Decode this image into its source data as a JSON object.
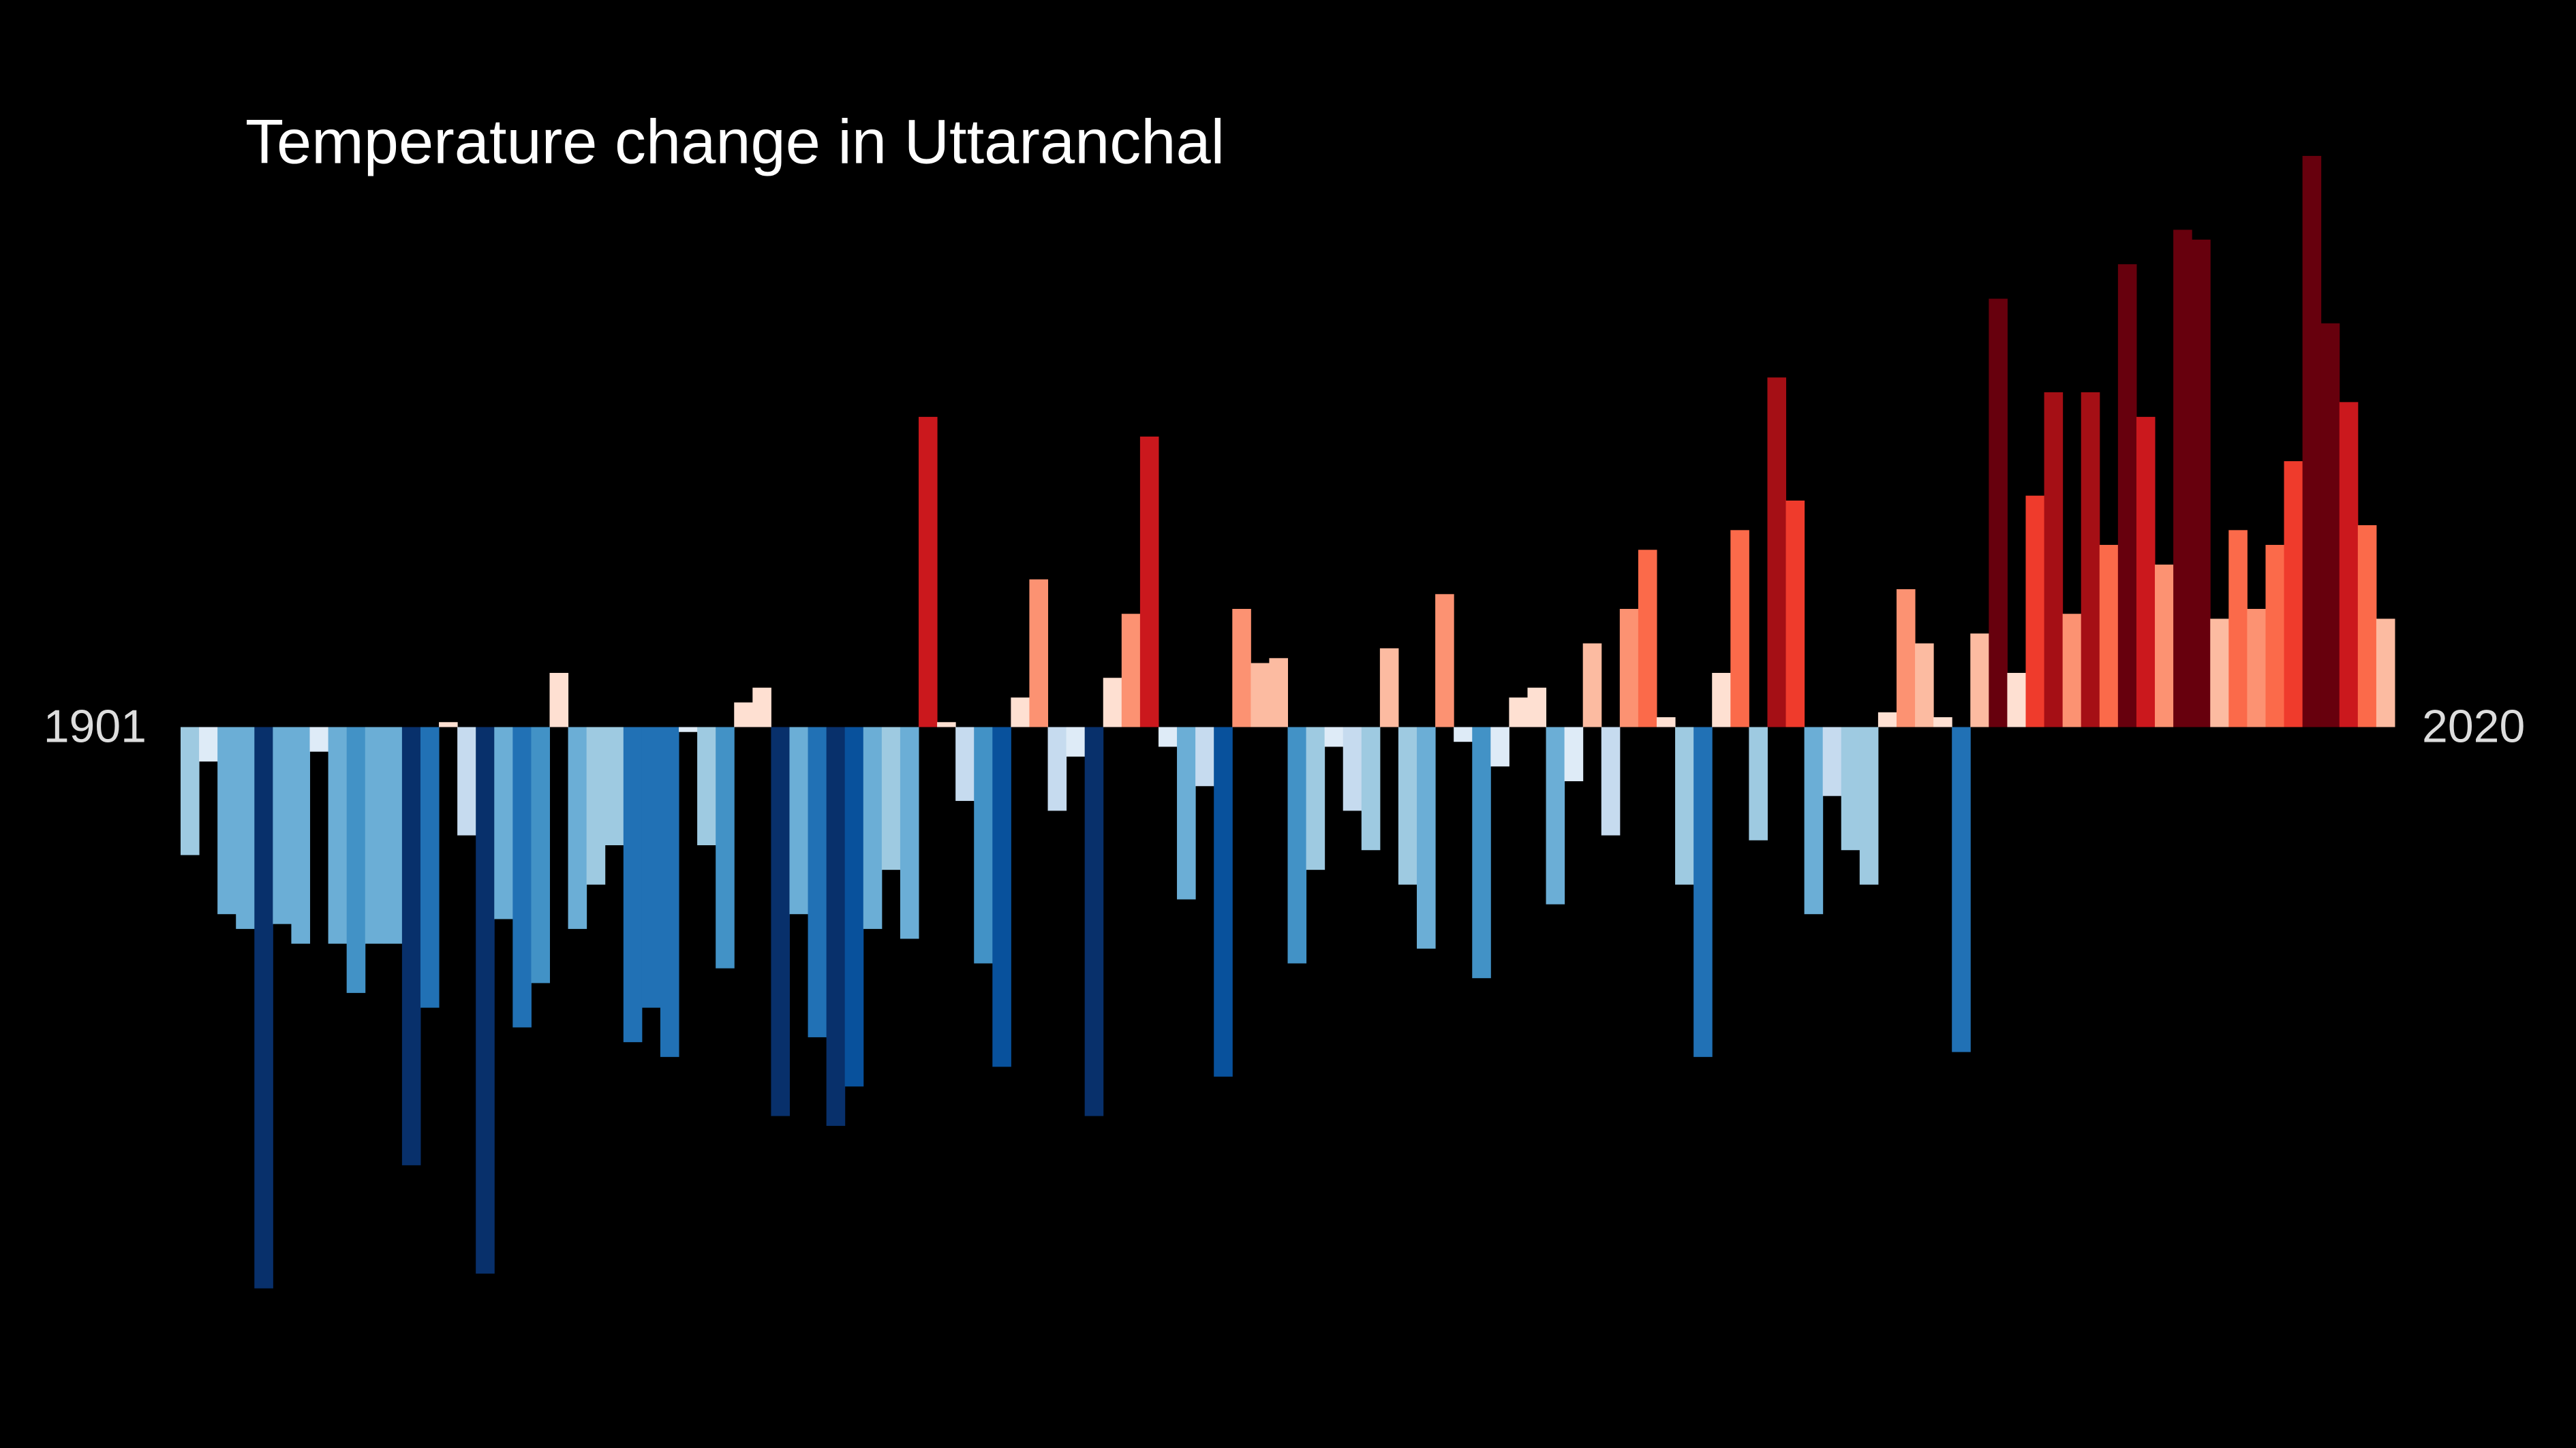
{
  "chart_data": {
    "type": "bar",
    "title": "Temperature change in Uttaranchal",
    "categories": [
      "1901",
      null,
      null,
      null,
      null,
      null,
      null,
      null,
      null,
      null,
      null,
      null,
      null,
      null,
      null,
      null,
      null,
      null,
      null,
      null,
      null,
      null,
      null,
      null,
      null,
      null,
      null,
      null,
      null,
      null,
      null,
      null,
      null,
      null,
      null,
      null,
      null,
      null,
      null,
      null,
      null,
      null,
      null,
      null,
      null,
      null,
      null,
      null,
      null,
      null,
      null,
      null,
      null,
      null,
      null,
      null,
      null,
      null,
      null,
      null,
      null,
      null,
      null,
      null,
      null,
      null,
      null,
      null,
      null,
      null,
      null,
      null,
      null,
      null,
      null,
      null,
      null,
      null,
      null,
      null,
      null,
      null,
      null,
      null,
      null,
      null,
      null,
      null,
      null,
      null,
      null,
      null,
      null,
      null,
      null,
      null,
      null,
      null,
      null,
      null,
      null,
      null,
      null,
      null,
      null,
      null,
      null,
      null,
      null,
      null,
      null,
      null,
      null,
      null,
      null,
      null,
      null,
      null,
      null,
      "2020"
    ],
    "values": [
      -0.26,
      -0.07,
      -0.38,
      -0.41,
      -1.14,
      -0.4,
      -0.44,
      -0.05,
      -0.44,
      -0.54,
      -0.44,
      -0.44,
      -0.89,
      -0.57,
      0.01,
      -0.22,
      -1.11,
      -0.39,
      -0.61,
      -0.52,
      0.11,
      -0.41,
      -0.32,
      -0.24,
      -0.64,
      -0.57,
      -0.67,
      -0.01,
      -0.24,
      -0.49,
      0.05,
      0.08,
      -0.79,
      -0.38,
      -0.63,
      -0.81,
      -0.73,
      -0.41,
      -0.29,
      -0.43,
      0.63,
      0.01,
      -0.15,
      -0.48,
      -0.69,
      0.06,
      0.3,
      -0.17,
      -0.06,
      -0.79,
      0.1,
      0.23,
      0.59,
      -0.04,
      -0.35,
      -0.12,
      -0.71,
      0.24,
      0.13,
      0.14,
      -0.48,
      -0.29,
      -0.04,
      -0.17,
      -0.25,
      0.16,
      -0.32,
      -0.45,
      0.27,
      -0.03,
      -0.51,
      -0.08,
      0.06,
      0.08,
      -0.36,
      -0.11,
      0.17,
      -0.22,
      0.24,
      0.36,
      0.02,
      -0.32,
      -0.67,
      0.11,
      0.4,
      -0.23,
      0.71,
      0.46,
      -0.38,
      -0.14,
      -0.25,
      -0.32,
      0.03,
      0.28,
      0.17,
      0.02,
      -0.66,
      0.19,
      0.87,
      0.11,
      0.47,
      0.68,
      0.23,
      0.68,
      0.37,
      0.94,
      0.63,
      0.33,
      1.01,
      0.99,
      0.22,
      0.4,
      0.24,
      0.37,
      0.54,
      1.16,
      0.82,
      0.66,
      0.41,
      0.22
    ],
    "ylim": [
      -1.2,
      1.2
    ],
    "colormap": [
      "#08306b",
      "#08519c",
      "#2171b5",
      "#4292c6",
      "#6baed6",
      "#9ecae1",
      "#c6dbef",
      "#deebf7",
      "#fee0d2",
      "#fcbba1",
      "#fc9272",
      "#fb6a4a",
      "#ef3b2c",
      "#cb181d",
      "#a50f15",
      "#67000d"
    ],
    "color_range": [
      -0.9,
      0.9
    ]
  }
}
